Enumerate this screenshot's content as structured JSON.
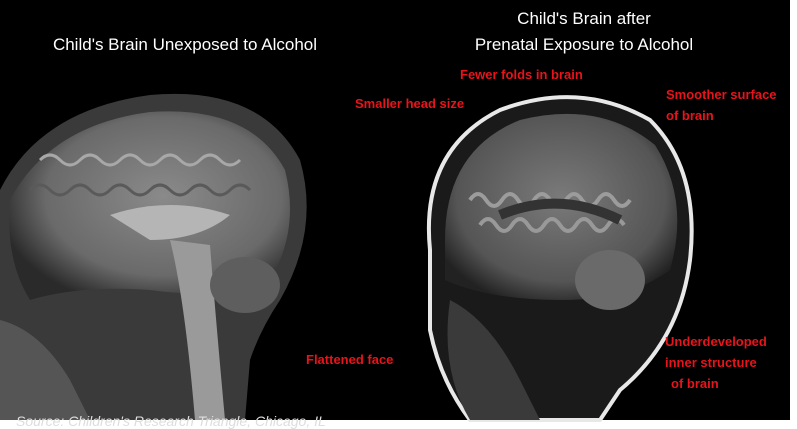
{
  "left_panel": {
    "title": "Child's Brain Unexposed to Alcohol"
  },
  "right_panel": {
    "title_lines": [
      "Child's Brain after",
      "Prenatal Exposure to Alcohol"
    ],
    "annotations": [
      {
        "lines": [
          "Fewer folds in brain"
        ]
      },
      {
        "lines": [
          "Smaller head size"
        ]
      },
      {
        "lines": [
          "Smoother surface",
          "of brain"
        ]
      },
      {
        "lines": [
          "Flattened face"
        ]
      },
      {
        "lines": [
          "Underdeveloped",
          "inner structure",
          "of brain"
        ]
      }
    ]
  },
  "source": "Source: Children's Research Triangle, Chicago, IL"
}
